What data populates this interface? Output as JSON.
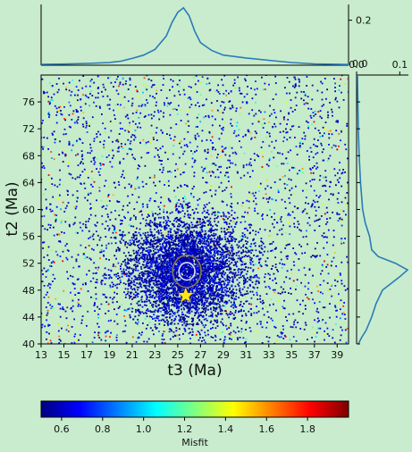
{
  "chart_data": [
    {
      "type": "scatter",
      "xlabel": "t3 (Ma)",
      "ylabel": "t2 (Ma)",
      "xlim": [
        13,
        40
      ],
      "ylim": [
        40,
        80
      ],
      "xticks": [
        13,
        15,
        17,
        19,
        21,
        23,
        25,
        27,
        29,
        31,
        33,
        35,
        37,
        39
      ],
      "yticks": [
        40,
        44,
        48,
        52,
        56,
        60,
        64,
        68,
        72,
        76
      ],
      "background_color": "#c6ecc9",
      "cluster": {
        "x_center": 25.7,
        "y_center": 51,
        "x_sd": 2.0,
        "y_sd": 3.8
      },
      "best_fit_marker": {
        "shape": "star",
        "x": 25.7,
        "y": 47.2,
        "color": "#ffe61a"
      },
      "contours": [
        {
          "x": 25.8,
          "y": 50.8,
          "rx": 0.7,
          "ry": 1.3,
          "color": "#e0e0ff"
        },
        {
          "x": 25.8,
          "y": 50.8,
          "rx": 1.25,
          "ry": 2.4,
          "color": "#8a7a4a"
        }
      ],
      "misfit_range": [
        0.5,
        2.0
      ]
    },
    {
      "type": "line",
      "position": "top",
      "x": [
        13,
        15,
        17,
        19,
        20,
        21,
        22,
        23,
        24,
        24.5,
        25,
        25.5,
        26,
        26.5,
        27,
        28,
        29,
        31,
        33,
        35,
        37,
        40
      ],
      "values": [
        0.004,
        0.005,
        0.008,
        0.012,
        0.018,
        0.03,
        0.045,
        0.07,
        0.13,
        0.19,
        0.235,
        0.255,
        0.22,
        0.15,
        0.1,
        0.065,
        0.045,
        0.032,
        0.022,
        0.012,
        0.006,
        0.003
      ],
      "yticks": [
        "0.2"
      ],
      "line_color": "#2b7bb9"
    },
    {
      "type": "line",
      "position": "right",
      "y": [
        40,
        41,
        42,
        44,
        46,
        48,
        49,
        50,
        51,
        52,
        53,
        54,
        56,
        58,
        60,
        64,
        68,
        72,
        76,
        80
      ],
      "values": [
        0.004,
        0.012,
        0.022,
        0.035,
        0.045,
        0.06,
        0.08,
        0.1,
        0.118,
        0.09,
        0.05,
        0.035,
        0.03,
        0.02,
        0.014,
        0.009,
        0.006,
        0.004,
        0.003,
        0.002
      ],
      "xticks": [
        "0.0",
        "0.1"
      ],
      "line_color": "#2b7bb9"
    },
    {
      "type": "colorbar",
      "label": "Misfit",
      "range": [
        0.5,
        2.0
      ],
      "ticks": [
        0.6,
        0.8,
        1.0,
        1.2,
        1.4,
        1.6,
        1.8
      ],
      "tick_labels": [
        "0.6",
        "0.8",
        "1.0",
        "1.2",
        "1.4",
        "1.6",
        "1.8"
      ],
      "colormap": "jet"
    }
  ],
  "corner_label": "0.0"
}
